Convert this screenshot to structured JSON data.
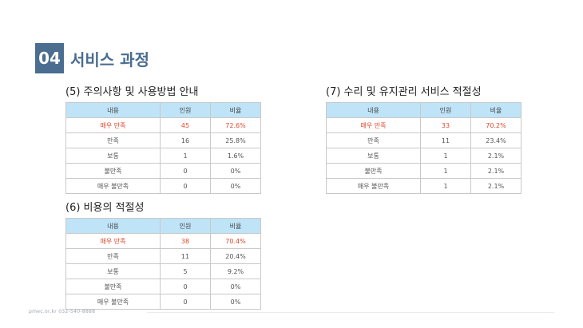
{
  "header": {
    "number": "04",
    "title": "서비스 과정"
  },
  "columns": [
    "내용",
    "인원",
    "비율"
  ],
  "sections": {
    "s5": {
      "title": "(5) 주의사항 및 사용방법 안내",
      "rows": [
        [
          "매우 만족",
          "45",
          "72.6%"
        ],
        [
          "만족",
          "16",
          "25.8%"
        ],
        [
          "보통",
          "1",
          "1.6%"
        ],
        [
          "불만족",
          "0",
          "0%"
        ],
        [
          "매우 불만족",
          "0",
          "0%"
        ]
      ]
    },
    "s7": {
      "title": "(7) 수리 및 유지관리 서비스 적절성",
      "rows": [
        [
          "매우 만족",
          "33",
          "70.2%"
        ],
        [
          "만족",
          "11",
          "23.4%"
        ],
        [
          "보통",
          "1",
          "2.1%"
        ],
        [
          "불만족",
          "1",
          "2.1%"
        ],
        [
          "매우 불만족",
          "1",
          "2.1%"
        ]
      ]
    },
    "s6": {
      "title": "(6) 비용의 적절성",
      "rows": [
        [
          "매우 만족",
          "38",
          "70.4%"
        ],
        [
          "만족",
          "11",
          "20.4%"
        ],
        [
          "보통",
          "5",
          "9.2%"
        ],
        [
          "불만족",
          "0",
          "0%"
        ],
        [
          "매우 불만족",
          "0",
          "0%"
        ]
      ]
    }
  },
  "footer": {
    "text": "pmec.or.kr  032-540-8888"
  },
  "colors": {
    "accent": "#4a6d90",
    "header_fill": "#bfe3f7",
    "highlight": "#e0462b"
  }
}
